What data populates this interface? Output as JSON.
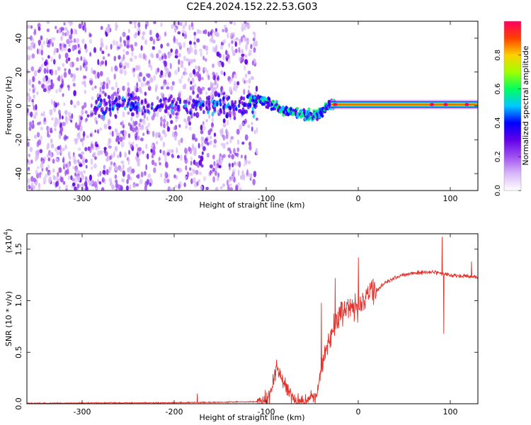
{
  "title": "C2E4.2024.152.22.53.G03",
  "chart_data": [
    {
      "type": "heatmap",
      "xlabel": "Height of straight line (km)",
      "ylabel": "Frequency (Hz)",
      "xlim": [
        -360,
        130
      ],
      "ylim": [
        -50,
        50
      ],
      "xticks": [
        -300,
        -200,
        -100,
        0,
        100
      ],
      "xtick_labels": [
        "-300",
        "-200",
        "-100",
        "0",
        "100"
      ],
      "yticks": [
        -40,
        -20,
        0,
        20,
        40
      ],
      "ytick_labels": [
        "-40",
        "-20",
        "0",
        "20",
        "40"
      ],
      "colormap": [
        "#ffffff",
        "#d8b8f8",
        "#a050f0",
        "#6000e8",
        "#0000ff",
        "#00c8ff",
        "#00ff60",
        "#a0ff00",
        "#ffd000",
        "#ff4000",
        "#ff0060"
      ],
      "colorbar": {
        "label": "Normalized spectral amplitude",
        "ticks": [
          0.0,
          0.2,
          0.4,
          0.6,
          0.8
        ],
        "tick_labels": [
          "0.0",
          "0.2",
          "0.4",
          "0.6",
          "0.8"
        ],
        "range": [
          0,
          1
        ]
      },
      "features": {
        "noise_region_x": [
          -360,
          -110
        ],
        "noise_band_peak_y": 0,
        "streak_points": [
          [
            -120,
            5
          ],
          [
            -100,
            3
          ],
          [
            -85,
            -2
          ],
          [
            -70,
            -4
          ],
          [
            -55,
            -6
          ],
          [
            -45,
            -5
          ],
          [
            -35,
            -1
          ],
          [
            -25,
            1
          ]
        ],
        "carrier_line": {
          "x": [
            -30,
            130
          ],
          "y": 0.8,
          "peak_amplitude": 0.95
        },
        "grid": false
      }
    },
    {
      "type": "line",
      "xlabel": "Height of straight line (km)",
      "ylabel": "SNR (10 * v/v)",
      "y_multiplier": "(x10",
      "y_multiplier_exp": "4",
      "y_multiplier_close": ")",
      "xlim": [
        -360,
        130
      ],
      "ylim": [
        0,
        1.65
      ],
      "xticks": [
        -300,
        -200,
        -100,
        0,
        100
      ],
      "xtick_labels": [
        "-300",
        "-200",
        "-100",
        "0",
        "100"
      ],
      "yticks": [
        0.0,
        0.5,
        1.0,
        1.5
      ],
      "ytick_labels": [
        "0.0",
        "0.5",
        "1.0",
        "1.5"
      ],
      "line_color": "#e8302a",
      "series_anchors": [
        {
          "x": -360,
          "y": 0.005
        },
        {
          "x": -200,
          "y": 0.01
        },
        {
          "x": -150,
          "y": 0.015
        },
        {
          "x": -110,
          "y": 0.02
        },
        {
          "x": -100,
          "y": 0.03
        },
        {
          "x": -95,
          "y": 0.12
        },
        {
          "x": -88,
          "y": 0.35
        },
        {
          "x": -82,
          "y": 0.22
        },
        {
          "x": -70,
          "y": 0.05
        },
        {
          "x": -55,
          "y": 0.03
        },
        {
          "x": -45,
          "y": 0.1
        },
        {
          "x": -38,
          "y": 0.45
        },
        {
          "x": -30,
          "y": 0.65
        },
        {
          "x": -20,
          "y": 0.85
        },
        {
          "x": -10,
          "y": 0.95
        },
        {
          "x": 0,
          "y": 0.92
        },
        {
          "x": 10,
          "y": 1.05
        },
        {
          "x": 20,
          "y": 1.1
        },
        {
          "x": 30,
          "y": 1.18
        },
        {
          "x": 45,
          "y": 1.24
        },
        {
          "x": 60,
          "y": 1.27
        },
        {
          "x": 80,
          "y": 1.28
        },
        {
          "x": 90,
          "y": 1.26
        },
        {
          "x": 110,
          "y": 1.24
        },
        {
          "x": 130,
          "y": 1.23
        }
      ],
      "spikes": [
        {
          "x": -175,
          "y": 0.1
        },
        {
          "x": -40,
          "y": 0.98
        },
        {
          "x": -25,
          "y": 1.22
        },
        {
          "x": 0,
          "y": 1.42
        },
        {
          "x": 10,
          "y": 1.12
        },
        {
          "x": 91,
          "y": 1.62
        },
        {
          "x": 93,
          "y": 0.68
        },
        {
          "x": 123,
          "y": 1.38
        }
      ],
      "grid": false
    }
  ]
}
